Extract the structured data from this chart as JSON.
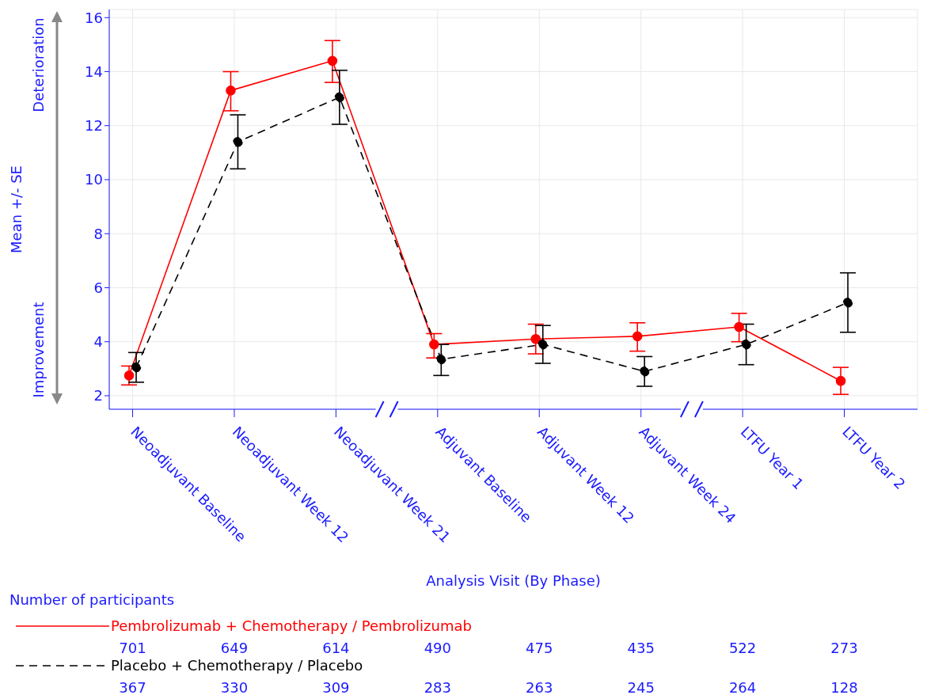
{
  "chart_data": {
    "type": "line",
    "xlabel": "Analysis Visit (By Phase)",
    "ylabel": "Mean +/- SE",
    "categories": [
      "Neoadjuvant Baseline",
      "Neoadjuvant Week 12",
      "Neoadjuvant Week 21",
      "Adjuvant Baseline",
      "Adjuvant Week 12",
      "Adjuvant Week 24",
      "LTFU Year 1",
      "LTFU Year 2"
    ],
    "series": [
      {
        "name": "Pembrolizumab + Chemotherapy / Pembrolizumab",
        "color": "#ff0000",
        "line_style": "solid",
        "values": [
          2.75,
          13.3,
          14.4,
          3.9,
          4.1,
          4.2,
          4.55,
          2.55
        ],
        "errors": [
          [
            2.4,
            3.1
          ],
          [
            12.55,
            14.0
          ],
          [
            13.6,
            15.15
          ],
          [
            3.4,
            4.3
          ],
          [
            3.55,
            4.65
          ],
          [
            3.65,
            4.7
          ],
          [
            4.0,
            5.05
          ],
          [
            2.05,
            3.05
          ]
        ]
      },
      {
        "name": "Placebo + Chemotherapy / Placebo",
        "color": "#000000",
        "line_style": "dashed",
        "values": [
          3.05,
          11.4,
          13.05,
          3.35,
          3.9,
          2.9,
          3.9,
          5.45
        ],
        "errors": [
          [
            2.5,
            3.6
          ],
          [
            10.4,
            12.4
          ],
          [
            12.05,
            14.05
          ],
          [
            2.75,
            3.9
          ],
          [
            3.2,
            4.6
          ],
          [
            2.35,
            3.45
          ],
          [
            3.15,
            4.65
          ],
          [
            4.35,
            6.55
          ]
        ]
      }
    ],
    "ylim": [
      1.5,
      16.3
    ],
    "yticks": [
      2,
      4,
      6,
      8,
      10,
      12,
      14,
      16
    ],
    "grid": true,
    "marker": "circle",
    "legend": "bottom",
    "annotations": [
      "Number of participants",
      "701",
      "649",
      "614",
      "490",
      "475",
      "435",
      "522",
      "273",
      "367",
      "330",
      "309",
      "283",
      "263",
      "245",
      "264",
      "128",
      "Deterioration",
      "Improvement"
    ]
  }
}
